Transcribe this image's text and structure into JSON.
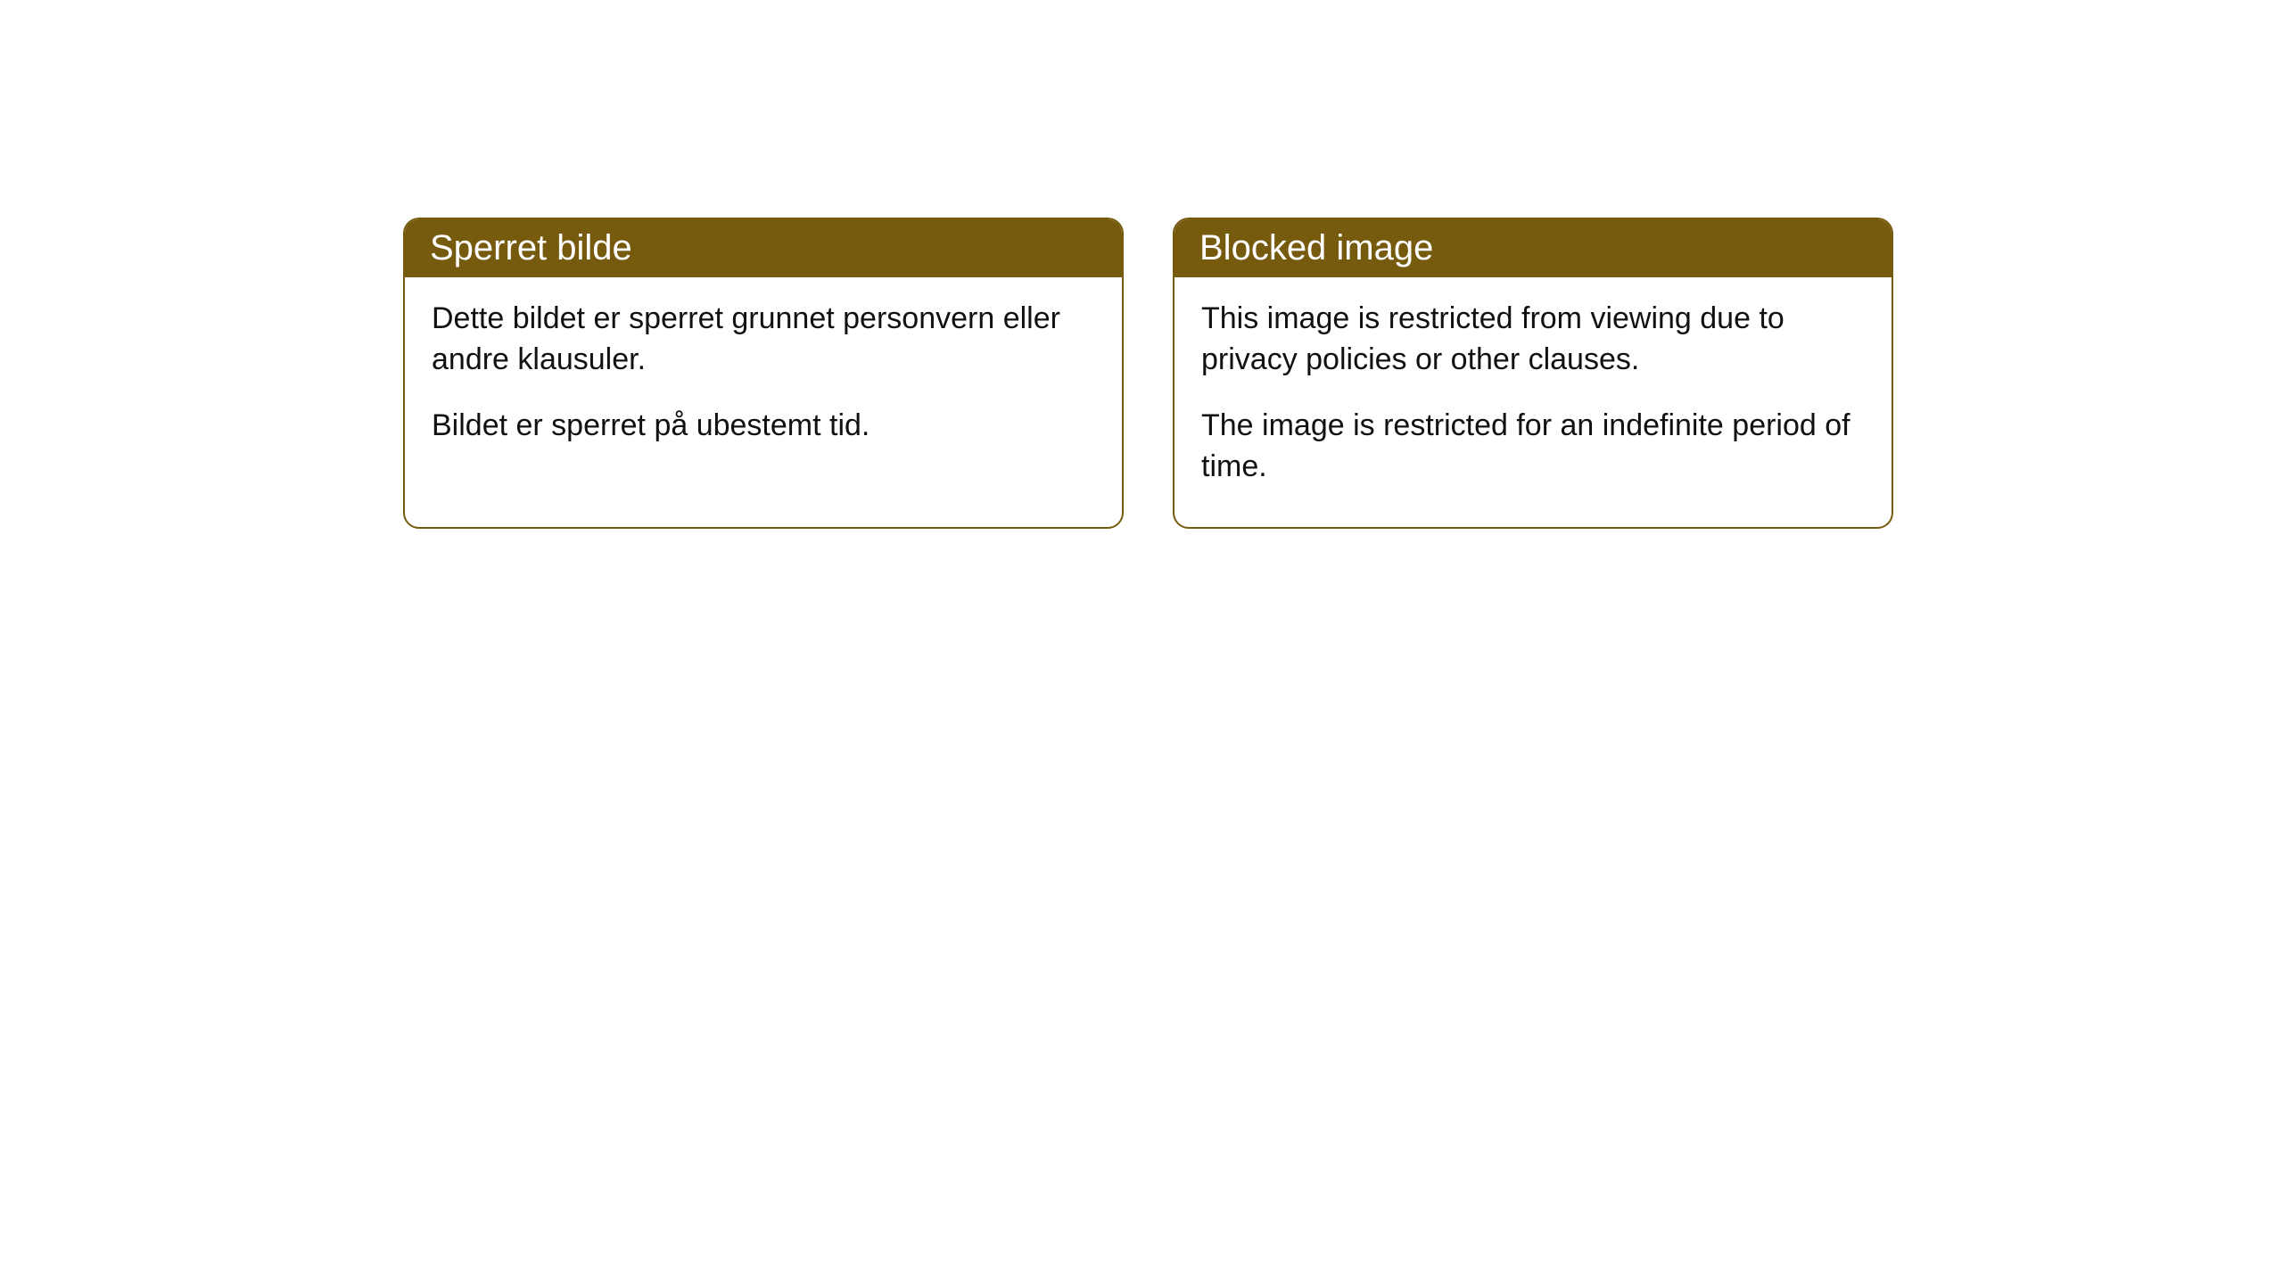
{
  "cards": [
    {
      "title": "Sperret bilde",
      "para1": "Dette bildet er sperret grunnet personvern eller andre klausuler.",
      "para2": "Bildet er sperret på ubestemt tid."
    },
    {
      "title": "Blocked image",
      "para1": "This image is restricted from viewing due to privacy policies or other clauses.",
      "para2": "The image is restricted for an indefinite period of time."
    }
  ],
  "style": {
    "header_bg": "#765b0f",
    "header_fg": "#ffffff",
    "border_color": "#765b0f",
    "border_radius": 18,
    "card_bg": "#ffffff",
    "body_text_color": "#111111",
    "title_fontsize": 40,
    "body_fontsize": 34
  }
}
